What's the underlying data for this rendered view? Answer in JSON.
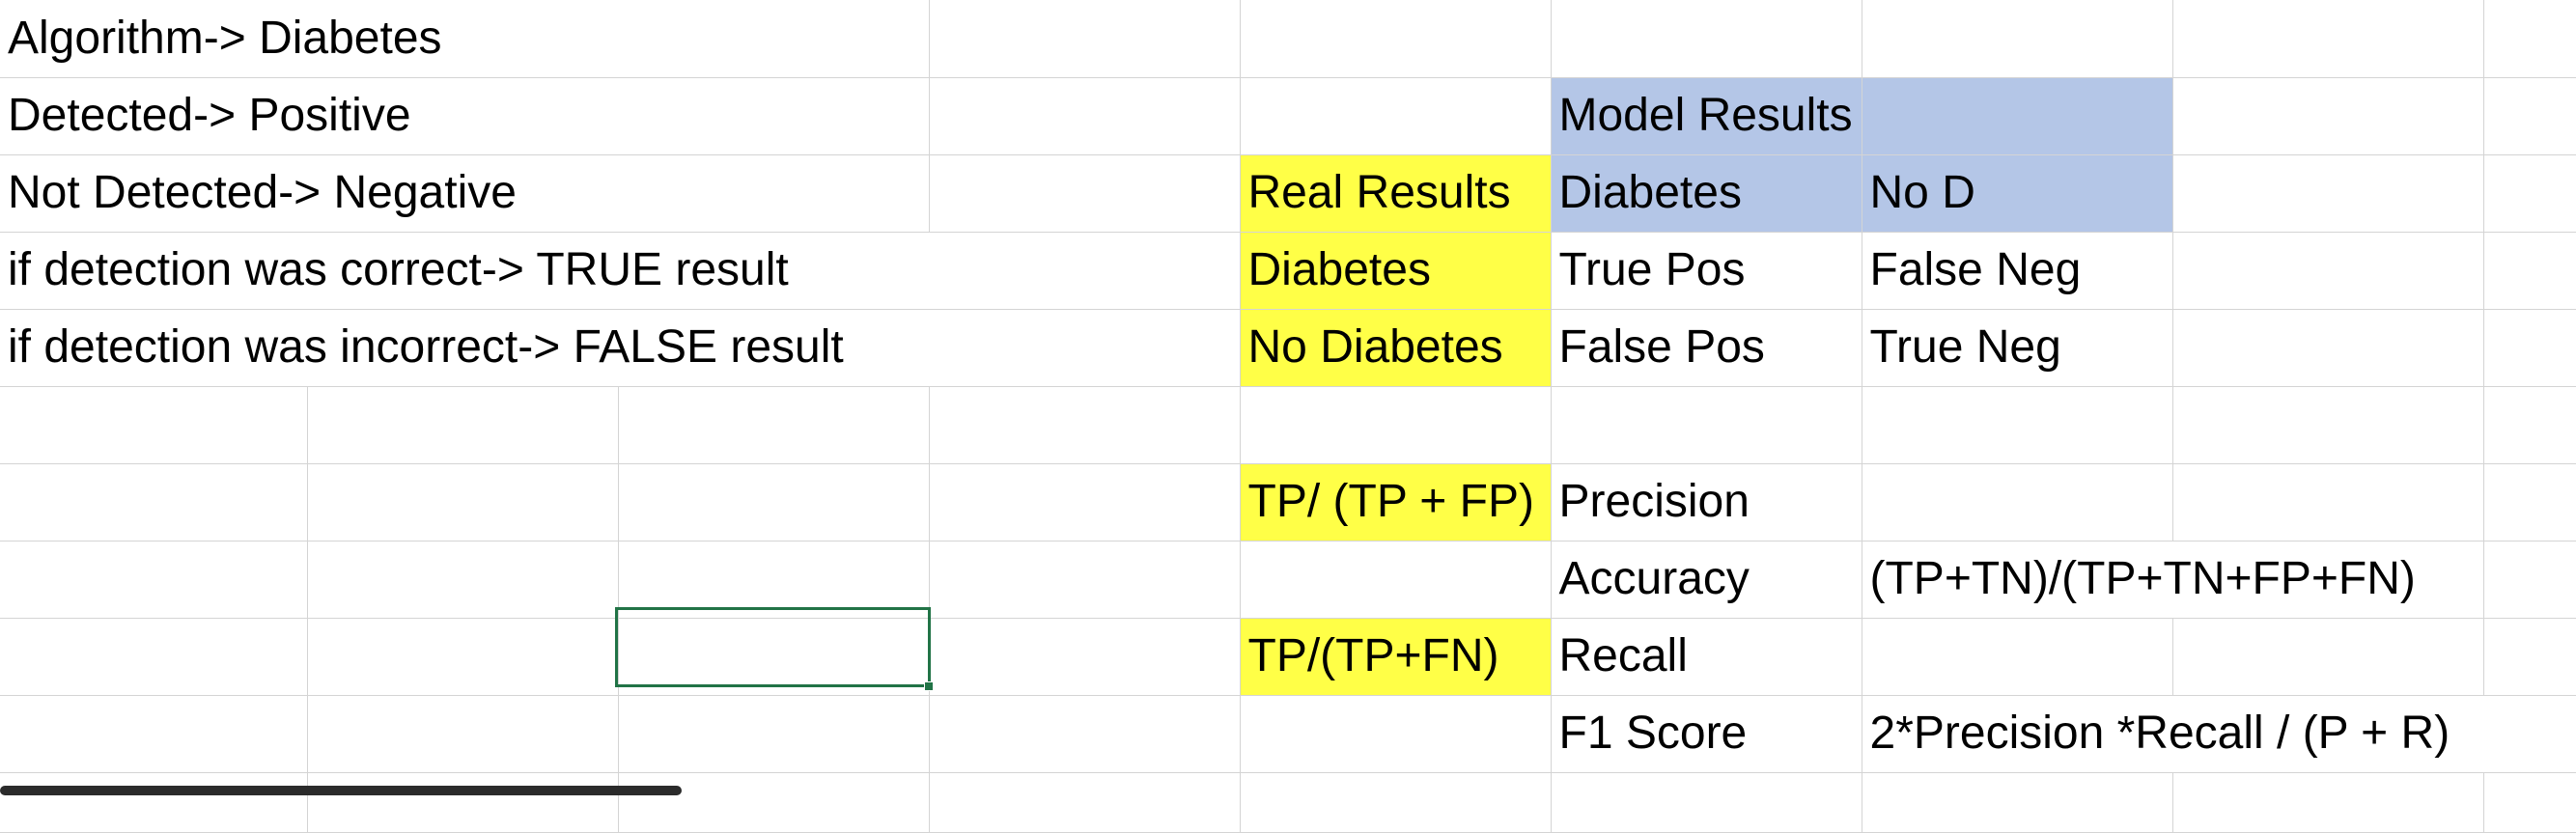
{
  "sheet": {
    "rows": [
      [
        "Algorithm-> Diabetes",
        "",
        "",
        "",
        "",
        "",
        "",
        "",
        ""
      ],
      [
        "Detected-> Positive",
        "",
        "",
        "",
        "",
        "Model Results",
        "",
        "",
        ""
      ],
      [
        "Not Detected-> Negative",
        "",
        "",
        "",
        "Real Results",
        "Diabetes",
        "No D",
        "",
        ""
      ],
      [
        "if detection was correct-> TRUE result",
        "",
        "",
        "",
        "Diabetes",
        "True Pos",
        "False Neg",
        "",
        ""
      ],
      [
        "if detection was incorrect-> FALSE result",
        "",
        "",
        "",
        "No Diabetes",
        "False Pos",
        "True Neg",
        "",
        ""
      ],
      [
        "",
        "",
        "",
        "",
        "",
        "",
        "",
        "",
        ""
      ],
      [
        "",
        "",
        "",
        "",
        "TP/ (TP + FP)",
        "Precision",
        "",
        "",
        ""
      ],
      [
        "",
        "",
        "",
        "",
        "",
        "Accuracy",
        "(TP+TN)/(TP+TN+FP+FN)",
        "",
        ""
      ],
      [
        "",
        "",
        "",
        "",
        "TP/(TP+FN)",
        "Recall",
        "",
        "",
        ""
      ],
      [
        "",
        "",
        "",
        "",
        "",
        "F1 Score",
        "2*Precision *Recall / (P + R)",
        "",
        ""
      ],
      [
        "",
        "",
        "",
        "",
        "",
        "",
        "",
        "",
        ""
      ]
    ]
  },
  "colors": {
    "highlight_yellow": "#ffff47",
    "highlight_blue": "#b4c6e7",
    "selection_border": "#217346",
    "gridline": "#d4d4d4"
  },
  "selected_cell": "C9"
}
